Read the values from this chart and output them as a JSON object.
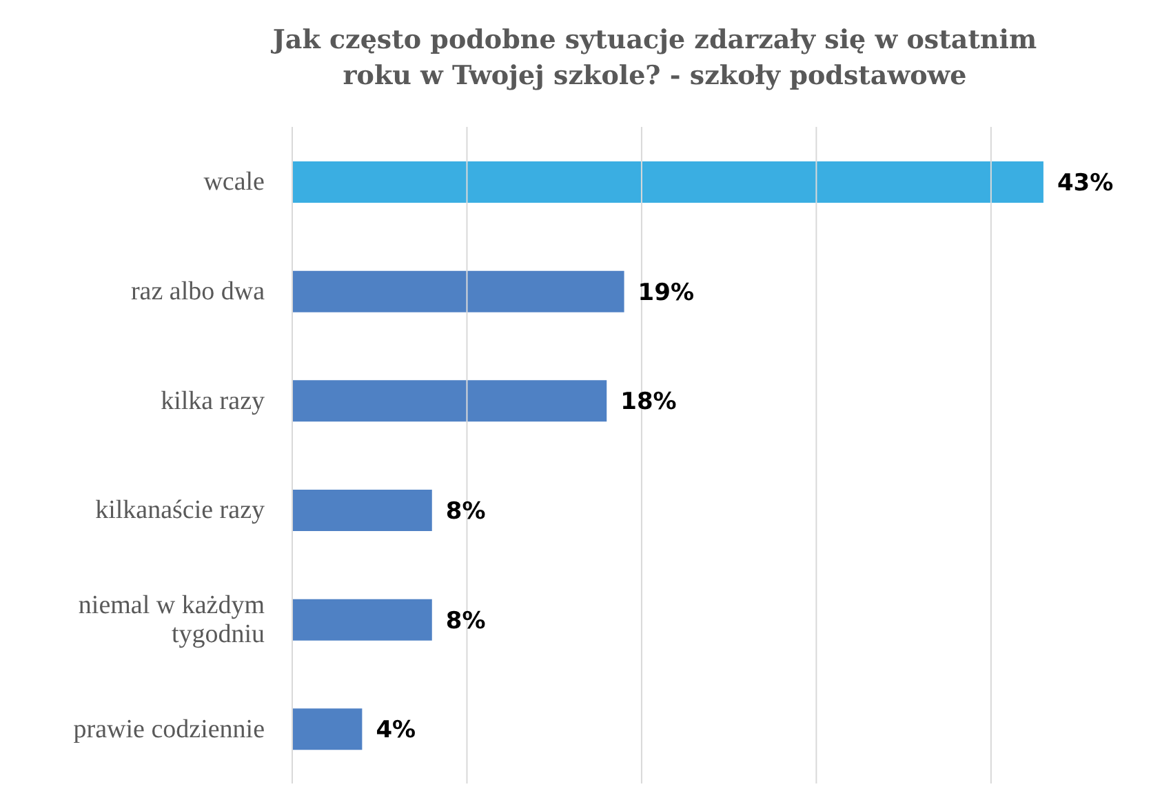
{
  "chart_data": {
    "type": "bar",
    "orientation": "horizontal",
    "title": "Jak często podobne sytuacje zdarzały się w ostatnim roku w Twojej szkole? - szkoły podstawowe",
    "categories": [
      "wcale",
      "raz albo dwa",
      "kilka razy",
      "kilkanaście razy",
      "niemal w każdym tygodniu",
      "prawie codziennie"
    ],
    "values": [
      43,
      19,
      18,
      8,
      8,
      4
    ],
    "colors": [
      "#3aaee2",
      "#4f81c4",
      "#4f81c4",
      "#4f81c4",
      "#4f81c4",
      "#4f81c4"
    ],
    "value_labels": [
      "43%",
      "19%",
      "18%",
      "8%",
      "8%",
      "4%"
    ],
    "xlim": [
      0,
      49
    ],
    "xticks": [
      {
        "value": 0,
        "label": null
      },
      {
        "value": 10,
        "label": null
      },
      {
        "value": 20,
        "label": null
      },
      {
        "value": 30,
        "label": null
      },
      {
        "value": 40,
        "label": null
      }
    ],
    "grid": "x",
    "tick_labels": "y"
  }
}
